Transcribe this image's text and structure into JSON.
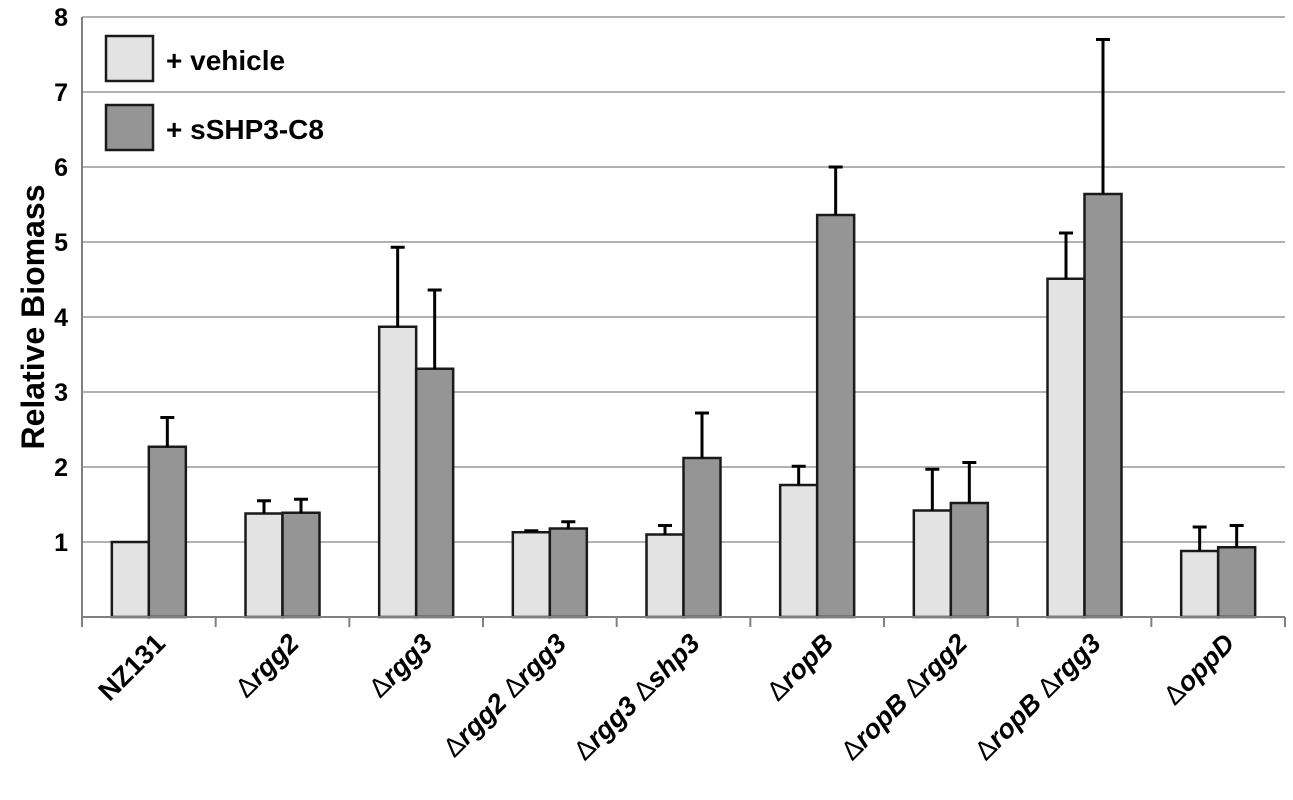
{
  "chart_data": {
    "type": "bar",
    "ylabel": "Relative Biomass",
    "ylim": [
      0,
      8
    ],
    "yticks": [
      "1",
      "2",
      "3",
      "4",
      "5",
      "6",
      "7",
      "8"
    ],
    "categories": [
      "NZ131",
      "Δrgg2",
      "Δrgg3",
      "Δrgg2 Δrgg3",
      "Δrgg3 Δshp3",
      "ΔropB",
      "ΔropB Δrgg2",
      "ΔropB Δrgg3",
      "ΔoppD"
    ],
    "series": [
      {
        "name": "+ vehicle",
        "color": "#e3e3e3",
        "values": [
          1.0,
          1.38,
          3.87,
          1.13,
          1.1,
          1.76,
          1.42,
          4.51,
          0.88
        ],
        "error": [
          0.0,
          0.17,
          1.06,
          0.02,
          0.12,
          0.25,
          0.55,
          0.61,
          0.32
        ]
      },
      {
        "name": "+ sSHP3-C8",
        "color": "#959595",
        "values": [
          2.27,
          1.39,
          3.31,
          1.18,
          2.12,
          5.36,
          1.52,
          5.64,
          0.93
        ],
        "error": [
          0.39,
          0.18,
          1.05,
          0.09,
          0.6,
          0.64,
          0.54,
          2.06,
          0.29
        ]
      }
    ],
    "grid": true,
    "legend_position": "top-left"
  }
}
